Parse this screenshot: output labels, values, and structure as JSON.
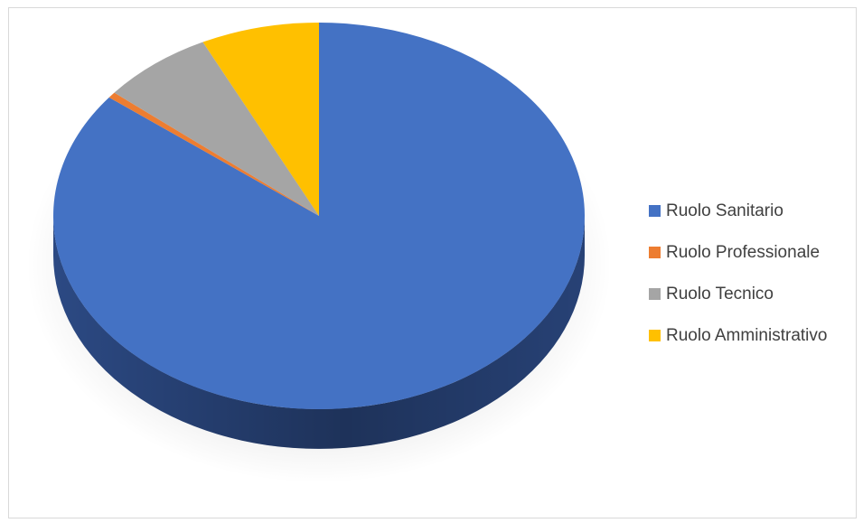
{
  "chart_data": {
    "type": "pie",
    "style": "3d",
    "title": "",
    "series": [
      {
        "slices": [
          {
            "name": "Ruolo Sanitario",
            "value": 85.5,
            "color": "#4472C4",
            "side_color": "#2E4D8A"
          },
          {
            "name": "Ruolo Professionale",
            "value": 0.5,
            "color": "#ED7D31",
            "side_color": "#A4561F"
          },
          {
            "name": "Ruolo Tecnico",
            "value": 6.8,
            "color": "#A5A5A5",
            "side_color": "#6F6F6F"
          },
          {
            "name": "Ruolo Amministrativo",
            "value": 7.2,
            "color": "#FFC000",
            "side_color": "#B38700"
          }
        ]
      }
    ],
    "legend": {
      "position": "right",
      "items": [
        "Ruolo Sanitario",
        "Ruolo Professionale",
        "Ruolo Tecnico",
        "Ruolo Amministrativo"
      ]
    }
  }
}
